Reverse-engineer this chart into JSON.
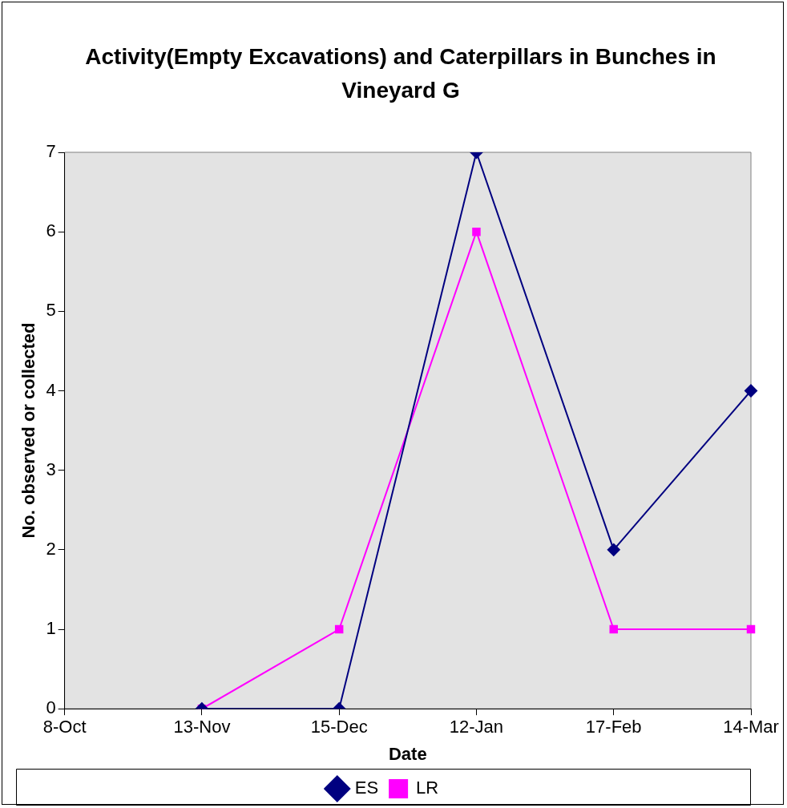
{
  "chart_data": {
    "type": "line",
    "title": "Activity(Empty Excavations) and Caterpillars in Bunches in Vineyard G",
    "xlabel": "Date",
    "ylabel": "No. observed or collected",
    "categories": [
      "8-Oct",
      "13-Nov",
      "15-Dec",
      "12-Jan",
      "17-Feb",
      "14-Mar"
    ],
    "series": [
      {
        "name": "ES",
        "color": "#000080",
        "marker": "diamond",
        "values": [
          null,
          0,
          0,
          7,
          2,
          4
        ]
      },
      {
        "name": "LR",
        "color": "#ff00ff",
        "marker": "square",
        "values": [
          null,
          0,
          1,
          6,
          1,
          1
        ]
      }
    ],
    "ylim": [
      0,
      7
    ],
    "yticks": [
      0,
      1,
      2,
      3,
      4,
      5,
      6,
      7
    ],
    "legend": "bottom"
  }
}
